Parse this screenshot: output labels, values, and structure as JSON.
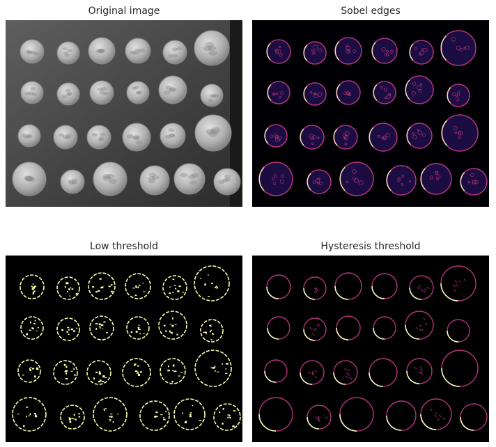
{
  "panels": [
    {
      "title": "Original image",
      "icon": "coins-photo"
    },
    {
      "title": "Sobel edges",
      "icon": "sobel-edge-map"
    },
    {
      "title": "Low threshold",
      "icon": "binary-edge-mask"
    },
    {
      "title": "Hysteresis threshold",
      "icon": "hysteresis-edge-map"
    }
  ],
  "colors": {
    "background": "#ffffff",
    "title_text": "#262626",
    "edge_magma_dark": "#1b0c41",
    "edge_magma_mid": "#b5367a",
    "edge_magma_bright": "#fcfdbf",
    "binary_edge": "#ffffaa"
  }
}
